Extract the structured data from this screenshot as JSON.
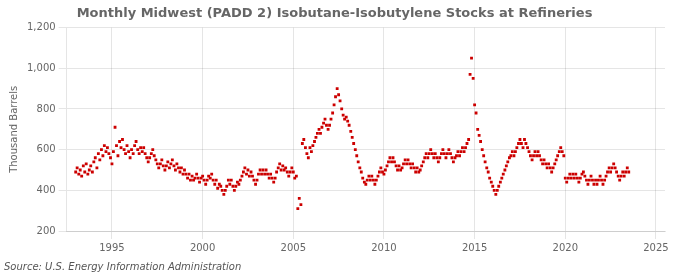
{
  "chart_data": {
    "type": "scatter",
    "title": "Monthly Midwest (PADD 2) Isobutane-Isobutylene Stocks at Refineries",
    "ylabel": "Thousand Barrels",
    "annotation": "Source: U.S. Energy Information Administration",
    "color": "#cc0000",
    "marker": "square",
    "grid": true,
    "xlim": [
      1992.5,
      2025.5
    ],
    "xticks": [
      1995,
      2000,
      2005,
      2010,
      2015,
      2020,
      2025
    ],
    "ylim": [
      200,
      1200
    ],
    "yticks": [
      200,
      400,
      600,
      800,
      {
        "value": 1000,
        "label": "1,000"
      },
      {
        "value": 1200,
        "label": "1,200"
      }
    ],
    "x": [
      1993.0,
      1993.08,
      1993.17,
      1993.25,
      1993.33,
      1993.42,
      1993.5,
      1993.58,
      1993.67,
      1993.75,
      1993.83,
      1993.92,
      1994.0,
      1994.08,
      1994.17,
      1994.25,
      1994.33,
      1994.42,
      1994.5,
      1994.58,
      1994.67,
      1994.75,
      1994.83,
      1994.92,
      1995.0,
      1995.08,
      1995.17,
      1995.25,
      1995.33,
      1995.42,
      1995.5,
      1995.58,
      1995.67,
      1995.75,
      1995.83,
      1995.92,
      1996.0,
      1996.08,
      1996.17,
      1996.25,
      1996.33,
      1996.42,
      1996.5,
      1996.58,
      1996.67,
      1996.75,
      1996.83,
      1996.92,
      1997.0,
      1997.08,
      1997.17,
      1997.25,
      1997.33,
      1997.42,
      1997.5,
      1997.58,
      1997.67,
      1997.75,
      1997.83,
      1997.92,
      1998.0,
      1998.08,
      1998.17,
      1998.25,
      1998.33,
      1998.42,
      1998.5,
      1998.58,
      1998.67,
      1998.75,
      1998.83,
      1998.92,
      1999.0,
      1999.08,
      1999.17,
      1999.25,
      1999.33,
      1999.42,
      1999.5,
      1999.58,
      1999.67,
      1999.75,
      1999.83,
      1999.92,
      2000.0,
      2000.08,
      2000.17,
      2000.25,
      2000.33,
      2000.42,
      2000.5,
      2000.58,
      2000.67,
      2000.75,
      2000.83,
      2000.92,
      2001.0,
      2001.08,
      2001.17,
      2001.25,
      2001.33,
      2001.42,
      2001.5,
      2001.58,
      2001.67,
      2001.75,
      2001.83,
      2001.92,
      2002.0,
      2002.08,
      2002.17,
      2002.25,
      2002.33,
      2002.42,
      2002.5,
      2002.58,
      2002.67,
      2002.75,
      2002.83,
      2002.92,
      2003.0,
      2003.08,
      2003.17,
      2003.25,
      2003.33,
      2003.42,
      2003.5,
      2003.58,
      2003.67,
      2003.75,
      2003.83,
      2003.92,
      2004.0,
      2004.08,
      2004.17,
      2004.25,
      2004.33,
      2004.42,
      2004.5,
      2004.58,
      2004.67,
      2004.75,
      2004.83,
      2004.92,
      2005.0,
      2005.08,
      2005.17,
      2005.25,
      2005.33,
      2005.42,
      2005.5,
      2005.58,
      2005.67,
      2005.75,
      2005.83,
      2005.92,
      2006.0,
      2006.08,
      2006.17,
      2006.25,
      2006.33,
      2006.42,
      2006.5,
      2006.58,
      2006.67,
      2006.75,
      2006.83,
      2006.92,
      2007.0,
      2007.08,
      2007.17,
      2007.25,
      2007.33,
      2007.42,
      2007.5,
      2007.58,
      2007.67,
      2007.75,
      2007.83,
      2007.92,
      2008.0,
      2008.08,
      2008.17,
      2008.25,
      2008.33,
      2008.42,
      2008.5,
      2008.58,
      2008.67,
      2008.75,
      2008.83,
      2008.92,
      2009.0,
      2009.08,
      2009.17,
      2009.25,
      2009.33,
      2009.42,
      2009.5,
      2009.58,
      2009.67,
      2009.75,
      2009.83,
      2009.92,
      2010.0,
      2010.08,
      2010.17,
      2010.25,
      2010.33,
      2010.42,
      2010.5,
      2010.58,
      2010.67,
      2010.75,
      2010.83,
      2010.92,
      2011.0,
      2011.08,
      2011.17,
      2011.25,
      2011.33,
      2011.42,
      2011.5,
      2011.58,
      2011.67,
      2011.75,
      2011.83,
      2011.92,
      2012.0,
      2012.08,
      2012.17,
      2012.25,
      2012.33,
      2012.42,
      2012.5,
      2012.58,
      2012.67,
      2012.75,
      2012.83,
      2012.92,
      2013.0,
      2013.08,
      2013.17,
      2013.25,
      2013.33,
      2013.42,
      2013.5,
      2013.58,
      2013.67,
      2013.75,
      2013.83,
      2013.92,
      2014.0,
      2014.08,
      2014.17,
      2014.25,
      2014.33,
      2014.42,
      2014.5,
      2014.58,
      2014.67,
      2014.75,
      2014.83,
      2014.92,
      2015.0,
      2015.08,
      2015.17,
      2015.25,
      2015.33,
      2015.42,
      2015.5,
      2015.58,
      2015.67,
      2015.75,
      2015.83,
      2015.92,
      2016.0,
      2016.08,
      2016.17,
      2016.25,
      2016.33,
      2016.42,
      2016.5,
      2016.58,
      2016.67,
      2016.75,
      2016.83,
      2016.92,
      2017.0,
      2017.08,
      2017.17,
      2017.25,
      2017.33,
      2017.42,
      2017.5,
      2017.58,
      2017.67,
      2017.75,
      2017.83,
      2017.92,
      2018.0,
      2018.08,
      2018.17,
      2018.25,
      2018.33,
      2018.42,
      2018.5,
      2018.58,
      2018.67,
      2018.75,
      2018.83,
      2018.92,
      2019.0,
      2019.08,
      2019.17,
      2019.25,
      2019.33,
      2019.42,
      2019.5,
      2019.58,
      2019.67,
      2019.75,
      2019.83,
      2019.92,
      2020.0,
      2020.08,
      2020.17,
      2020.25,
      2020.33,
      2020.42,
      2020.5,
      2020.58,
      2020.67,
      2020.75,
      2020.83,
      2020.92,
      2021.0,
      2021.08,
      2021.17,
      2021.25,
      2021.33,
      2021.42,
      2021.5,
      2021.58,
      2021.67,
      2021.75,
      2021.83,
      2021.92,
      2022.0,
      2022.08,
      2022.17,
      2022.25,
      2022.33,
      2022.42,
      2022.5,
      2022.58,
      2022.67,
      2022.75,
      2022.83,
      2022.92,
      2023.0,
      2023.08,
      2023.17,
      2023.25,
      2023.33,
      2023.42,
      2023.5
    ],
    "values": [
      490,
      510,
      480,
      500,
      470,
      520,
      490,
      530,
      480,
      500,
      520,
      490,
      540,
      560,
      510,
      580,
      550,
      600,
      570,
      620,
      590,
      610,
      580,
      560,
      530,
      590,
      710,
      620,
      570,
      640,
      610,
      650,
      600,
      580,
      620,
      590,
      560,
      600,
      580,
      620,
      640,
      600,
      580,
      610,
      590,
      610,
      580,
      560,
      540,
      560,
      580,
      600,
      570,
      550,
      530,
      510,
      530,
      550,
      520,
      500,
      520,
      540,
      510,
      530,
      550,
      520,
      500,
      530,
      510,
      490,
      510,
      480,
      500,
      480,
      460,
      480,
      450,
      470,
      450,
      460,
      480,
      460,
      440,
      460,
      470,
      450,
      430,
      450,
      470,
      460,
      480,
      450,
      430,
      450,
      410,
      430,
      420,
      400,
      380,
      400,
      420,
      450,
      430,
      450,
      420,
      400,
      420,
      440,
      430,
      450,
      470,
      490,
      510,
      480,
      500,
      470,
      490,
      470,
      450,
      430,
      450,
      480,
      500,
      480,
      500,
      480,
      500,
      480,
      460,
      480,
      460,
      440,
      460,
      490,
      510,
      530,
      500,
      520,
      500,
      510,
      490,
      470,
      490,
      510,
      490,
      460,
      470,
      310,
      360,
      330,
      630,
      650,
      610,
      580,
      560,
      610,
      590,
      620,
      640,
      660,
      680,
      700,
      680,
      710,
      730,
      750,
      720,
      700,
      720,
      750,
      780,
      820,
      860,
      900,
      870,
      840,
      800,
      770,
      750,
      760,
      740,
      720,
      690,
      660,
      630,
      600,
      570,
      540,
      510,
      490,
      460,
      440,
      430,
      450,
      470,
      450,
      470,
      450,
      430,
      450,
      470,
      490,
      510,
      490,
      480,
      500,
      520,
      540,
      560,
      540,
      560,
      540,
      520,
      500,
      520,
      500,
      510,
      530,
      550,
      530,
      550,
      530,
      510,
      530,
      510,
      490,
      510,
      490,
      500,
      520,
      540,
      560,
      580,
      560,
      580,
      600,
      580,
      560,
      580,
      560,
      540,
      560,
      580,
      600,
      580,
      560,
      580,
      600,
      580,
      560,
      540,
      560,
      570,
      590,
      570,
      590,
      610,
      590,
      610,
      630,
      650,
      970,
      1050,
      950,
      820,
      780,
      700,
      670,
      640,
      600,
      570,
      540,
      510,
      490,
      460,
      440,
      420,
      400,
      380,
      400,
      420,
      440,
      460,
      480,
      500,
      520,
      540,
      560,
      570,
      590,
      570,
      590,
      610,
      630,
      650,
      630,
      610,
      650,
      630,
      610,
      590,
      570,
      550,
      570,
      590,
      570,
      590,
      570,
      550,
      530,
      550,
      530,
      510,
      530,
      510,
      490,
      510,
      530,
      550,
      570,
      590,
      610,
      590,
      570,
      460,
      440,
      460,
      480,
      460,
      480,
      460,
      480,
      460,
      440,
      460,
      480,
      490,
      470,
      450,
      430,
      450,
      470,
      450,
      430,
      450,
      430,
      450,
      470,
      450,
      430,
      450,
      470,
      490,
      510,
      490,
      510,
      530,
      510,
      490,
      470,
      450,
      470,
      490,
      470,
      490,
      510,
      490
    ]
  }
}
